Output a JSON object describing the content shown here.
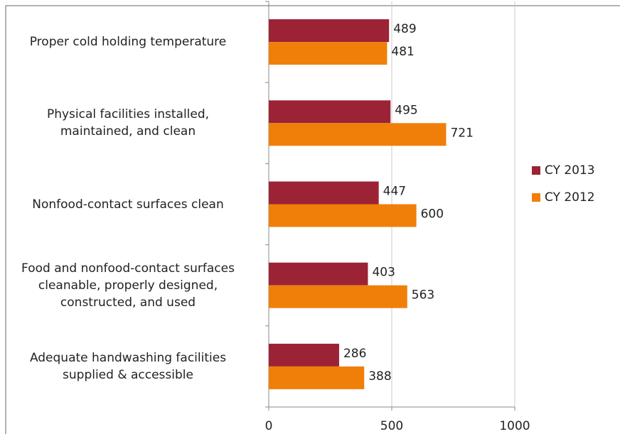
{
  "chart_data": {
    "type": "bar",
    "orientation": "horizontal",
    "categories": [
      "Proper cold holding temperature",
      "Physical facilities installed,\nmaintained, and clean",
      "Nonfood-contact surfaces clean",
      "Food and nonfood-contact surfaces\ncleanable, properly designed,\nconstructed, and used",
      "Adequate handwashing facilities\nsupplied & accessible"
    ],
    "series": [
      {
        "name": "CY 2013",
        "color": "#9b2335",
        "values": [
          489,
          495,
          447,
          403,
          286
        ]
      },
      {
        "name": "CY 2012",
        "color": "#f07f09",
        "values": [
          481,
          721,
          600,
          563,
          388
        ]
      }
    ],
    "xlim": [
      0,
      1000
    ],
    "xticks": [
      0,
      500,
      1000
    ],
    "grid": true,
    "legend": "right"
  }
}
